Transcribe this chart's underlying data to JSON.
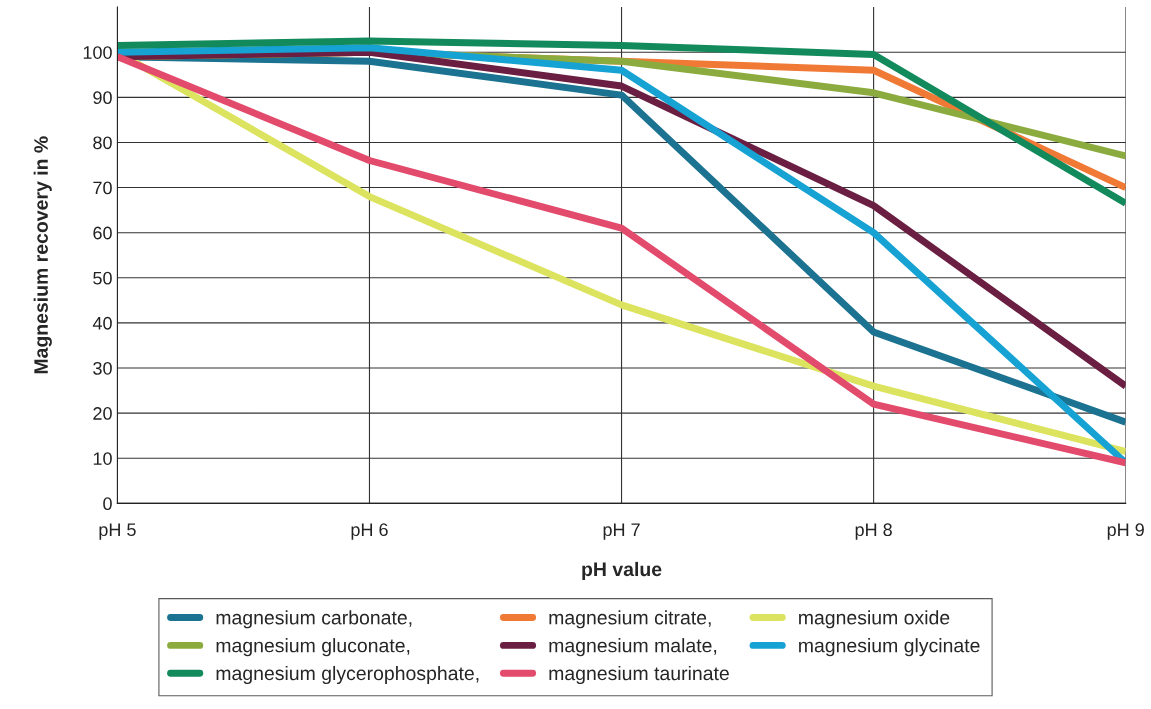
{
  "chart_data": {
    "type": "line",
    "xlabel": "pH value",
    "ylabel": "Magnesium recovery in %",
    "categories": [
      "pH 5",
      "pH 6",
      "pH 7",
      "pH 8",
      "pH 9"
    ],
    "ylim": [
      0,
      110
    ],
    "yticks": [
      0,
      10,
      20,
      30,
      40,
      50,
      60,
      70,
      80,
      90,
      100
    ],
    "grid": true,
    "legend": "bottom",
    "marker": "none",
    "line_style": "solid",
    "series": [
      {
        "name": "magnesium carbonate,",
        "color": "#1b7291",
        "values": [
          99,
          98,
          90.5,
          38,
          18
        ]
      },
      {
        "name": "magnesium citrate,",
        "color": "#f07a35",
        "values": [
          99,
          100,
          98,
          96,
          70
        ]
      },
      {
        "name": "magnesium oxide",
        "color": "#dce35e",
        "values": [
          100,
          68,
          44,
          26,
          11.5
        ]
      },
      {
        "name": "magnesium gluconate,",
        "color": "#8cab3e",
        "values": [
          99,
          100,
          98,
          91,
          77
        ]
      },
      {
        "name": "magnesium malate,",
        "color": "#6a1f42",
        "values": [
          99,
          100,
          92.5,
          66,
          26
        ]
      },
      {
        "name": "magnesium glycinate",
        "color": "#16a2d3",
        "values": [
          100,
          101,
          96,
          60,
          9
        ]
      },
      {
        "name": "magnesium glycerophosphate,",
        "color": "#138a5c",
        "values": [
          101.5,
          102.5,
          101.5,
          99.5,
          66.5
        ]
      },
      {
        "name": "magnesium taurinate",
        "color": "#e34b6d",
        "values": [
          99,
          76,
          61,
          22,
          9
        ]
      }
    ]
  }
}
